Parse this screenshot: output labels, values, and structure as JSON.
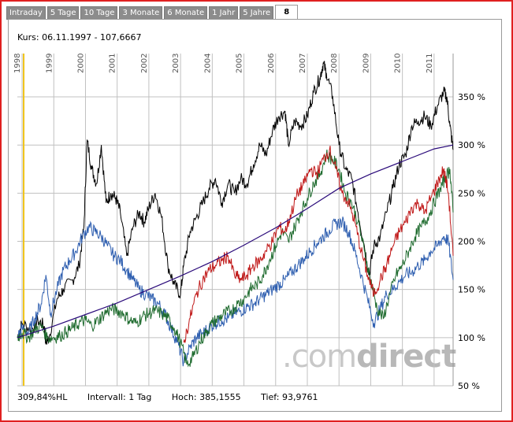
{
  "tabs": [
    {
      "label": "Intraday",
      "active": false
    },
    {
      "label": "5 Tage",
      "active": false
    },
    {
      "label": "10 Tage",
      "active": false
    },
    {
      "label": "3 Monate",
      "active": false
    },
    {
      "label": "6 Monate",
      "active": false
    },
    {
      "label": "1 Jahr",
      "active": false
    },
    {
      "label": "5 Jahre",
      "active": false
    },
    {
      "label": "8",
      "active": true
    }
  ],
  "kurs": "Kurs: 06.11.1997 - 107,6667",
  "footer": {
    "change": "309,84%HL",
    "interval": "Intervall: 1 Tag",
    "high": "Hoch: 385,1555",
    "low": "Tief: 93,9761"
  },
  "watermark": {
    "prefix": ".com",
    "suffix": "direct"
  },
  "colors": {
    "black_series": "#000000",
    "blue_series": "#2f5fb0",
    "green_series": "#1e6b2e",
    "red_series": "#c01818",
    "trend_line": "#2a0a7a",
    "marker_line": "#f0c419",
    "grid": "#c0c0c0"
  },
  "chart_data": {
    "type": "line",
    "x_ticks": [
      "1998",
      "1999",
      "2000",
      "2001",
      "2002",
      "2003",
      "2004",
      "2005",
      "2006",
      "2007",
      "2008",
      "2009",
      "2010",
      "2011"
    ],
    "y_ticks": [
      "50 %",
      "100 %",
      "150 %",
      "200 %",
      "250 %",
      "300 %",
      "350 %"
    ],
    "y_tick_values": [
      50,
      100,
      150,
      200,
      250,
      300,
      350
    ],
    "xlim": [
      1997.85,
      2011.6
    ],
    "ylim": [
      50,
      395
    ],
    "marker_x": 1998.05,
    "series": [
      {
        "color": "black",
        "x": [
          1997.85,
          1998.0,
          1998.3,
          1998.5,
          1998.7,
          1998.75,
          1998.85,
          1999.1,
          1999.3,
          1999.6,
          1999.8,
          1999.95,
          2000.05,
          2000.2,
          2000.35,
          2000.5,
          2000.65,
          2000.8,
          2000.95,
          2001.1,
          2001.3,
          2001.5,
          2001.7,
          2001.85,
          2002.0,
          2002.2,
          2002.4,
          2002.6,
          2002.8,
          2003.0,
          2003.1,
          2003.3,
          2003.5,
          2003.7,
          2003.9,
          2004.1,
          2004.3,
          2004.5,
          2004.7,
          2004.9,
          2005.1,
          2005.3,
          2005.5,
          2005.7,
          2005.9,
          2006.1,
          2006.3,
          2006.4,
          2006.6,
          2006.8,
          2007.0,
          2007.2,
          2007.4,
          2007.5,
          2007.6,
          2007.8,
          2008.0,
          2008.2,
          2008.4,
          2008.6,
          2008.8,
          2008.95,
          2009.1,
          2009.3,
          2009.5,
          2009.7,
          2009.9,
          2010.1,
          2010.3,
          2010.5,
          2010.7,
          2010.9,
          2011.1,
          2011.3,
          2011.4,
          2011.5,
          2011.6
        ],
        "y": [
          100,
          115,
          108,
          118,
          112,
          95,
          100,
          140,
          150,
          160,
          175,
          215,
          305,
          275,
          260,
          300,
          240,
          250,
          245,
          230,
          185,
          215,
          230,
          220,
          235,
          250,
          225,
          175,
          155,
          145,
          175,
          210,
          225,
          240,
          255,
          265,
          240,
          260,
          250,
          265,
          260,
          280,
          300,
          290,
          315,
          330,
          335,
          300,
          325,
          320,
          330,
          355,
          370,
          385,
          375,
          350,
          300,
          275,
          265,
          230,
          195,
          165,
          195,
          205,
          230,
          255,
          280,
          290,
          320,
          325,
          330,
          320,
          340,
          355,
          350,
          320,
          295
        ]
      },
      {
        "color": "blue",
        "x": [
          1997.85,
          1998.0,
          1998.2,
          1998.4,
          1998.6,
          1998.75,
          1998.9,
          1999.1,
          1999.3,
          1999.5,
          1999.7,
          1999.9,
          2000.1,
          2000.3,
          2000.5,
          2000.7,
          2000.9,
          2001.1,
          2001.3,
          2001.5,
          2001.7,
          2001.9,
          2002.1,
          2002.3,
          2002.5,
          2002.7,
          2002.9,
          2003.1,
          2003.3,
          2003.5,
          2003.7,
          2003.9,
          2004.1,
          2004.3,
          2004.5,
          2004.7,
          2004.9,
          2005.1,
          2005.3,
          2005.5,
          2005.7,
          2005.9,
          2006.1,
          2006.3,
          2006.5,
          2006.7,
          2006.9,
          2007.1,
          2007.3,
          2007.5,
          2007.7,
          2007.9,
          2008.1,
          2008.3,
          2008.5,
          2008.7,
          2008.9,
          2009.1,
          2009.3,
          2009.5,
          2009.7,
          2009.9,
          2010.1,
          2010.3,
          2010.5,
          2010.7,
          2010.9,
          2011.1,
          2011.3,
          2011.45,
          2011.6
        ],
        "y": [
          100,
          110,
          105,
          120,
          135,
          165,
          125,
          150,
          170,
          180,
          190,
          205,
          215,
          210,
          205,
          195,
          185,
          180,
          170,
          160,
          150,
          145,
          140,
          135,
          125,
          110,
          95,
          75,
          90,
          100,
          105,
          110,
          115,
          118,
          120,
          125,
          128,
          132,
          135,
          140,
          145,
          150,
          155,
          160,
          168,
          175,
          182,
          190,
          198,
          205,
          212,
          218,
          220,
          210,
          190,
          165,
          140,
          115,
          130,
          145,
          150,
          158,
          165,
          168,
          175,
          180,
          190,
          195,
          205,
          200,
          160
        ]
      },
      {
        "color": "green",
        "x": [
          1997.85,
          1998.0,
          1998.2,
          1998.4,
          1998.6,
          1998.8,
          1999.0,
          1999.2,
          1999.4,
          1999.6,
          1999.8,
          2000.0,
          2000.2,
          2000.4,
          2000.6,
          2000.8,
          2001.0,
          2001.2,
          2001.4,
          2001.6,
          2001.8,
          2002.0,
          2002.2,
          2002.4,
          2002.6,
          2002.8,
          2003.0,
          2003.2,
          2003.4,
          2003.6,
          2003.8,
          2004.0,
          2004.2,
          2004.4,
          2004.6,
          2004.8,
          2005.0,
          2005.2,
          2005.4,
          2005.6,
          2005.8,
          2006.0,
          2006.2,
          2006.4,
          2006.6,
          2006.8,
          2007.0,
          2007.2,
          2007.4,
          2007.6,
          2007.8,
          2008.0,
          2008.2,
          2008.4,
          2008.6,
          2008.8,
          2009.0,
          2009.2,
          2009.4,
          2009.6,
          2009.8,
          2010.0,
          2010.2,
          2010.4,
          2010.6,
          2010.8,
          2011.0,
          2011.2,
          2011.35,
          2011.5,
          2011.6
        ],
        "y": [
          100,
          105,
          100,
          108,
          112,
          100,
          100,
          102,
          106,
          110,
          115,
          118,
          112,
          118,
          125,
          130,
          128,
          125,
          118,
          115,
          122,
          125,
          128,
          125,
          120,
          110,
          95,
          72,
          80,
          95,
          105,
          115,
          120,
          125,
          128,
          135,
          140,
          150,
          155,
          165,
          180,
          195,
          210,
          200,
          215,
          230,
          245,
          260,
          270,
          290,
          285,
          275,
          250,
          240,
          220,
          190,
          160,
          130,
          120,
          145,
          165,
          175,
          190,
          205,
          215,
          225,
          240,
          255,
          265,
          275,
          230
        ]
      },
      {
        "color": "red",
        "x": [
          2003.1,
          2003.3,
          2003.5,
          2003.7,
          2003.9,
          2004.1,
          2004.3,
          2004.5,
          2004.7,
          2004.9,
          2005.1,
          2005.3,
          2005.5,
          2005.7,
          2005.9,
          2006.1,
          2006.3,
          2006.5,
          2006.7,
          2006.9,
          2007.1,
          2007.3,
          2007.5,
          2007.7,
          2007.9,
          2008.1,
          2008.3,
          2008.5,
          2008.7,
          2008.9,
          2009.1,
          2009.3,
          2009.5,
          2009.7,
          2009.9,
          2010.1,
          2010.3,
          2010.5,
          2010.7,
          2010.9,
          2011.1,
          2011.3,
          2011.45,
          2011.6
        ],
        "y": [
          95,
          120,
          145,
          160,
          170,
          175,
          180,
          185,
          165,
          160,
          165,
          175,
          180,
          190,
          200,
          215,
          210,
          230,
          250,
          260,
          275,
          270,
          285,
          295,
          275,
          250,
          240,
          220,
          190,
          165,
          145,
          160,
          175,
          195,
          210,
          220,
          235,
          240,
          230,
          245,
          260,
          275,
          250,
          185
        ]
      },
      {
        "color": "trend",
        "x": [
          1997.85,
          1999.0,
          2000.0,
          2001.0,
          2002.0,
          2003.0,
          2004.0,
          2005.0,
          2006.0,
          2007.0,
          2008.0,
          2009.0,
          2010.0,
          2011.0,
          2011.6
        ],
        "y": [
          100,
          112,
          124,
          136,
          150,
          164,
          179,
          196,
          214,
          234,
          255,
          270,
          283,
          296,
          300
        ]
      }
    ]
  }
}
